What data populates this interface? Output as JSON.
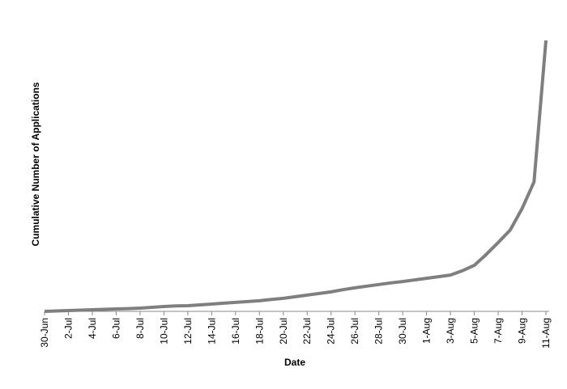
{
  "chart_data": {
    "type": "line",
    "x_label": "Date",
    "y_label": "Cumulative Number of Applications",
    "categories": [
      "30-Jun",
      null,
      "2-Jul",
      null,
      "4-Jul",
      null,
      "6-Jul",
      null,
      "8-Jul",
      null,
      "10-Jul",
      null,
      "12-Jul",
      null,
      "14-Jul",
      null,
      "16-Jul",
      null,
      "18-Jul",
      null,
      "20-Jul",
      null,
      "22-Jul",
      null,
      "24-Jul",
      null,
      "26-Jul",
      null,
      "28-Jul",
      null,
      "30-Jul",
      null,
      "1-Aug",
      null,
      "3-Aug",
      null,
      "5-Aug",
      null,
      "7-Aug",
      null,
      "9-Aug",
      null,
      "11-Aug"
    ],
    "values": [
      0,
      0.15,
      0.3,
      0.45,
      0.6,
      0.75,
      0.9,
      1.0,
      1.2,
      1.5,
      1.8,
      2.0,
      2.1,
      2.4,
      2.7,
      3.0,
      3.3,
      3.6,
      3.9,
      4.4,
      4.8,
      5.4,
      6.0,
      6.6,
      7.2,
      8.0,
      8.7,
      9.3,
      9.9,
      10.5,
      11.0,
      11.6,
      12.2,
      12.8,
      13.4,
      15,
      17,
      21,
      25.4,
      30,
      37.9,
      47.8,
      100
    ],
    "color": "#7f7f7f",
    "ylim": [
      0,
      100
    ]
  }
}
